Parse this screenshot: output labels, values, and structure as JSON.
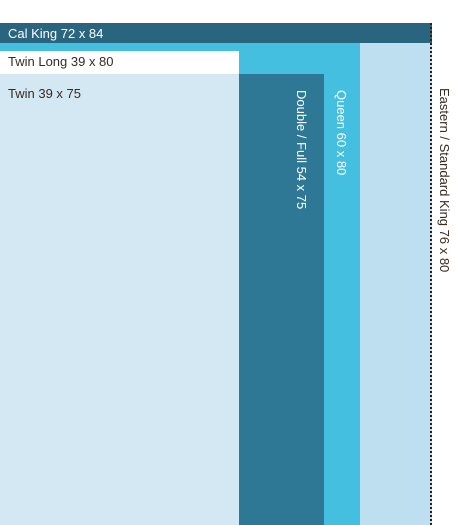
{
  "beds": {
    "cal_king": {
      "label": "Cal King 72 x 84",
      "color": "#2a6580",
      "width_in": 72,
      "length_in": 84
    },
    "eastern_king": {
      "label": "Eastern / Standard King  76 x 80",
      "color": "#bddff0",
      "width_in": 76,
      "length_in": 80
    },
    "queen": {
      "label": "Queen  60 x 80",
      "color": "#45bfe0",
      "width_in": 60,
      "length_in": 80
    },
    "twin_long": {
      "label": "Twin Long 39 x 80",
      "color": "#ffffff",
      "width_in": 39,
      "length_in": 80
    },
    "double_full": {
      "label": "Double / Full  54 x 75",
      "color": "#2e7896",
      "width_in": 54,
      "length_in": 75
    },
    "twin": {
      "label": "Twin 39 x 75",
      "color": "#d3e8f3",
      "width_in": 39,
      "length_in": 75
    }
  }
}
